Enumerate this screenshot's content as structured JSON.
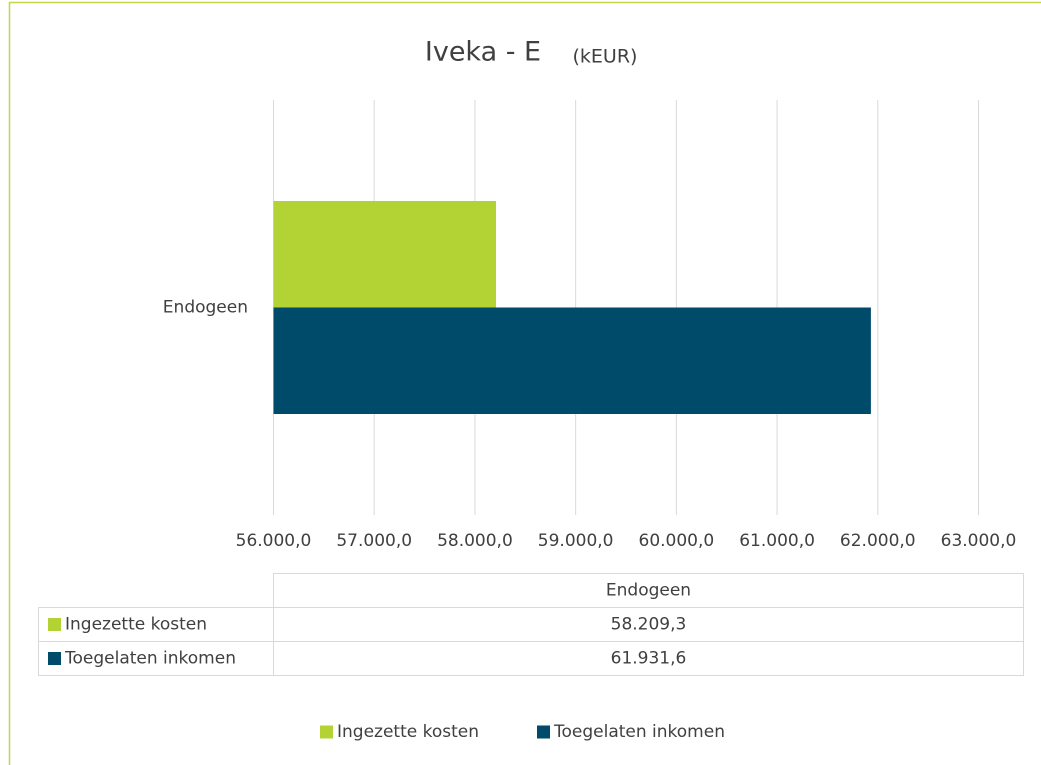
{
  "chart_data": {
    "type": "bar",
    "orientation": "horizontal",
    "title": "Iveka - E",
    "subtitle": "(kEUR)",
    "categories": [
      "Endogeen"
    ],
    "series": [
      {
        "name": "Ingezette kosten",
        "color": "#b3d335",
        "values": [
          58209.3
        ],
        "value_labels": [
          "58.209,3"
        ]
      },
      {
        "name": "Toegelaten inkomen",
        "color": "#004a6a",
        "values": [
          61931.6
        ],
        "value_labels": [
          "61.931,6"
        ]
      }
    ],
    "xlim": [
      56000,
      63000
    ],
    "xticks": [
      {
        "value": 56000,
        "label": "56.000,0"
      },
      {
        "value": 57000,
        "label": "57.000,0"
      },
      {
        "value": 58000,
        "label": "58.000,0"
      },
      {
        "value": 59000,
        "label": "59.000,0"
      },
      {
        "value": 60000,
        "label": "60.000,0"
      },
      {
        "value": 61000,
        "label": "61.000,0"
      },
      {
        "value": 62000,
        "label": "62.000,0"
      },
      {
        "value": 63000,
        "label": "63.000,0"
      }
    ],
    "grid": true,
    "legend": "bottom"
  }
}
